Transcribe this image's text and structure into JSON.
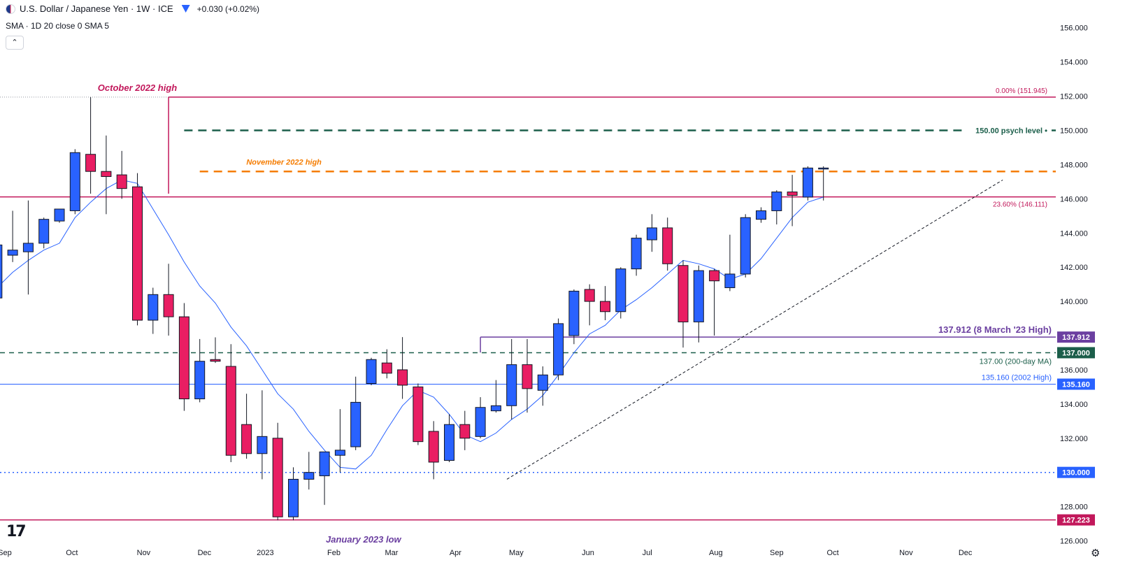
{
  "header": {
    "symbol": "U.S. Dollar / Japanese Yen · 1W · ICE",
    "change": "+0.030 (+0.02%)",
    "indicator": "SMA · 1D 20 close 0 SMA 5",
    "collapse_icon": "chevron-up-icon"
  },
  "colors": {
    "up": "#2962ff",
    "down": "#e91e63",
    "sma": "#2962ff",
    "pink_line": "#c2185b",
    "orange": "#f57c00",
    "green": "#1b5e4a",
    "purple": "#6b3fa0",
    "blue_line": "#2962ff"
  },
  "chart_data": {
    "type": "candlestick",
    "title": "U.S. Dollar / Japanese Yen · 1W · ICE",
    "ylim": [
      125,
      156.5
    ],
    "y_ticks": [
      "126.000",
      "128.000",
      "130.000",
      "132.000",
      "134.000",
      "136.000",
      "138.000",
      "140.000",
      "142.000",
      "144.000",
      "146.000",
      "148.000",
      "150.000",
      "152.000",
      "154.000",
      "156.000"
    ],
    "x_labels": [
      {
        "label": "Sep",
        "index": -4.5
      },
      {
        "label": "Oct",
        "index": -0.2
      },
      {
        "label": "Nov",
        "index": 4.4
      },
      {
        "label": "Dec",
        "index": 8.3
      },
      {
        "label": "2023",
        "index": 12.2
      },
      {
        "label": "Feb",
        "index": 16.6
      },
      {
        "label": "Mar",
        "index": 20.3
      },
      {
        "label": "Apr",
        "index": 24.4
      },
      {
        "label": "May",
        "index": 28.3
      },
      {
        "label": "Jun",
        "index": 32.9
      },
      {
        "label": "Jul",
        "index": 36.7
      },
      {
        "label": "Aug",
        "index": 41.1
      },
      {
        "label": "Sep",
        "index": 45.0
      },
      {
        "label": "Oct",
        "index": 48.6
      },
      {
        "label": "Nov",
        "index": 53.3
      },
      {
        "label": "Dec",
        "index": 57.1
      }
    ],
    "candles": [
      {
        "o": 140.2,
        "h": 143.3,
        "l": 139.8,
        "c": 143.3
      },
      {
        "o": 142.7,
        "h": 145.3,
        "l": 142.3,
        "c": 143.0
      },
      {
        "o": 142.9,
        "h": 145.9,
        "l": 140.4,
        "c": 143.4
      },
      {
        "o": 143.4,
        "h": 144.9,
        "l": 143.1,
        "c": 144.8
      },
      {
        "o": 144.7,
        "h": 145.4,
        "l": 144.6,
        "c": 145.4
      },
      {
        "o": 145.3,
        "h": 148.9,
        "l": 145.1,
        "c": 148.7
      },
      {
        "o": 148.6,
        "h": 151.945,
        "l": 146.3,
        "c": 147.6
      },
      {
        "o": 147.6,
        "h": 149.7,
        "l": 145.1,
        "c": 147.3
      },
      {
        "o": 147.4,
        "h": 148.8,
        "l": 146.0,
        "c": 146.6
      },
      {
        "o": 146.7,
        "h": 147.5,
        "l": 138.6,
        "c": 138.9
      },
      {
        "o": 138.9,
        "h": 140.8,
        "l": 138.1,
        "c": 140.4
      },
      {
        "o": 140.4,
        "h": 142.2,
        "l": 138.0,
        "c": 139.1
      },
      {
        "o": 139.1,
        "h": 139.9,
        "l": 133.6,
        "c": 134.3
      },
      {
        "o": 134.3,
        "h": 137.8,
        "l": 134.1,
        "c": 136.5
      },
      {
        "o": 136.6,
        "h": 137.9,
        "l": 136.4,
        "c": 136.5
      },
      {
        "o": 136.2,
        "h": 137.5,
        "l": 130.6,
        "c": 131.0
      },
      {
        "o": 132.8,
        "h": 134.6,
        "l": 130.8,
        "c": 131.1
      },
      {
        "o": 131.1,
        "h": 134.8,
        "l": 129.6,
        "c": 132.1
      },
      {
        "o": 132.0,
        "h": 132.9,
        "l": 127.2,
        "c": 127.4
      },
      {
        "o": 127.4,
        "h": 130.3,
        "l": 127.2,
        "c": 129.6
      },
      {
        "o": 129.6,
        "h": 131.2,
        "l": 129.0,
        "c": 130.0
      },
      {
        "o": 129.8,
        "h": 131.2,
        "l": 128.1,
        "c": 131.2
      },
      {
        "o": 131.0,
        "h": 133.7,
        "l": 130.0,
        "c": 131.3
      },
      {
        "o": 131.5,
        "h": 135.6,
        "l": 131.3,
        "c": 134.1
      },
      {
        "o": 135.2,
        "h": 136.7,
        "l": 135.1,
        "c": 136.6
      },
      {
        "o": 136.4,
        "h": 137.2,
        "l": 135.5,
        "c": 135.8
      },
      {
        "o": 136.0,
        "h": 137.912,
        "l": 134.3,
        "c": 135.1
      },
      {
        "o": 135.0,
        "h": 135.2,
        "l": 131.6,
        "c": 131.8
      },
      {
        "o": 132.4,
        "h": 133.0,
        "l": 129.6,
        "c": 130.6
      },
      {
        "o": 130.7,
        "h": 133.4,
        "l": 130.6,
        "c": 132.8
      },
      {
        "o": 132.8,
        "h": 133.6,
        "l": 131.3,
        "c": 132.0
      },
      {
        "o": 132.1,
        "h": 134.4,
        "l": 132.0,
        "c": 133.8
      },
      {
        "o": 133.6,
        "h": 135.4,
        "l": 133.5,
        "c": 133.9
      },
      {
        "o": 133.9,
        "h": 137.8,
        "l": 133.1,
        "c": 136.3
      },
      {
        "o": 136.3,
        "h": 137.8,
        "l": 133.5,
        "c": 134.9
      },
      {
        "o": 134.8,
        "h": 136.2,
        "l": 133.9,
        "c": 135.7
      },
      {
        "o": 135.7,
        "h": 139.0,
        "l": 135.4,
        "c": 138.7
      },
      {
        "o": 138.0,
        "h": 140.7,
        "l": 137.5,
        "c": 140.6
      },
      {
        "o": 140.7,
        "h": 141.0,
        "l": 138.6,
        "c": 140.0
      },
      {
        "o": 140.0,
        "h": 140.9,
        "l": 138.9,
        "c": 139.4
      },
      {
        "o": 139.4,
        "h": 142.0,
        "l": 139.0,
        "c": 141.9
      },
      {
        "o": 141.9,
        "h": 143.9,
        "l": 141.5,
        "c": 143.7
      },
      {
        "o": 143.6,
        "h": 145.1,
        "l": 142.9,
        "c": 144.3
      },
      {
        "o": 144.3,
        "h": 144.9,
        "l": 141.8,
        "c": 142.2
      },
      {
        "o": 142.1,
        "h": 142.4,
        "l": 137.3,
        "c": 138.8
      },
      {
        "o": 138.8,
        "h": 142.1,
        "l": 137.6,
        "c": 141.8
      },
      {
        "o": 141.8,
        "h": 141.9,
        "l": 138.0,
        "c": 141.2
      },
      {
        "o": 140.8,
        "h": 143.9,
        "l": 140.6,
        "c": 141.6
      },
      {
        "o": 141.6,
        "h": 145.1,
        "l": 141.4,
        "c": 144.9
      },
      {
        "o": 144.8,
        "h": 145.5,
        "l": 144.6,
        "c": 145.3
      },
      {
        "o": 145.3,
        "h": 146.5,
        "l": 144.5,
        "c": 146.4
      },
      {
        "o": 146.4,
        "h": 147.4,
        "l": 144.4,
        "c": 146.2
      },
      {
        "o": 146.1,
        "h": 147.9,
        "l": 145.9,
        "c": 147.8
      },
      {
        "o": 147.8,
        "h": 147.9,
        "l": 145.9,
        "c": 147.8
      }
    ],
    "sma": [
      140.8,
      141.7,
      142.4,
      143.0,
      143.4,
      144.9,
      145.8,
      146.6,
      147.1,
      146.9,
      145.4,
      143.9,
      142.3,
      140.9,
      139.9,
      138.5,
      137.4,
      136.0,
      134.6,
      133.7,
      132.4,
      131.3,
      130.3,
      130.2,
      131.0,
      132.5,
      133.9,
      134.8,
      134.4,
      133.4,
      132.2,
      131.8,
      132.3,
      133.1,
      133.7,
      134.5,
      135.7,
      137.0,
      138.1,
      138.6,
      139.5,
      140.1,
      140.8,
      141.6,
      142.4,
      142.2,
      141.9,
      141.3,
      141.6,
      142.5,
      143.7,
      144.9,
      145.8,
      146.1
    ],
    "levels": [
      {
        "value": 151.945,
        "label": "0.00% (151.945)",
        "from": 6,
        "color": "#c2185b",
        "style": "solid",
        "width": 1.5,
        "name": "fib-0-line"
      },
      {
        "value": 150.0,
        "label": "150.00 psych level",
        "from": 7,
        "color": "#1b5e4a",
        "style": "dash-long",
        "width": 2.5,
        "name": "psych-level-line"
      },
      {
        "value": 147.6,
        "label": "November 2022 high",
        "from": 8,
        "color": "#f57c00",
        "style": "dash-long",
        "width": 2.5,
        "name": "nov-2022-high-line"
      },
      {
        "value": 146.111,
        "label": "23.60% (146.111)",
        "from": 6,
        "color": "#c2185b",
        "style": "solid",
        "width": 1.5,
        "name": "fib-236-line"
      },
      {
        "value": 137.912,
        "label": "137.912 (8 March '23 High)",
        "from": 26,
        "color": "#6b3fa0",
        "style": "solid",
        "width": 1.5,
        "name": "march-high-line"
      },
      {
        "value": 137.0,
        "label": "137.00 (200-day MA)",
        "from": -5,
        "color": "#1b5e4a",
        "style": "dash-med",
        "width": 1.5,
        "name": "ma200-line"
      },
      {
        "value": 135.16,
        "label": "135.160 (2002 High)",
        "from": -5,
        "color": "#2962ff",
        "style": "solid",
        "width": 1,
        "name": "2002-high-line"
      },
      {
        "value": 130.0,
        "label": "",
        "from": -5,
        "color": "#2962ff",
        "style": "dotted",
        "width": 1.5,
        "name": "130-level-line"
      },
      {
        "value": 127.223,
        "label": "",
        "from": -5,
        "color": "#c2185b",
        "style": "solid",
        "width": 1.5,
        "name": "jan-2023-low-line"
      }
    ],
    "trendline": {
      "from": [
        27.7,
        129.6
      ],
      "to": [
        59.5,
        147.1
      ]
    },
    "price_labels": [
      {
        "text": "137.912",
        "value": 137.912,
        "color": "#6b3fa0"
      },
      {
        "text": "137.000",
        "value": 137.0,
        "color": "#1b5e4a"
      },
      {
        "text": "135.160",
        "value": 135.16,
        "color": "#2962ff"
      },
      {
        "text": "130.000",
        "value": 130.0,
        "color": "#2962ff"
      },
      {
        "text": "127.223",
        "value": 127.223,
        "color": "#c2185b"
      }
    ],
    "annotations": [
      {
        "text": "October 2022 high",
        "index": 4,
        "value": 152.3,
        "color": "#c2185b",
        "size": 13
      },
      {
        "text": "November 2022 high",
        "index": 13.4,
        "value": 148.0,
        "color": "#f57c00",
        "size": 11
      },
      {
        "text": "January 2023 low",
        "index": 18.5,
        "value": 125.9,
        "color": "#6b3fa0",
        "size": 13
      }
    ]
  }
}
